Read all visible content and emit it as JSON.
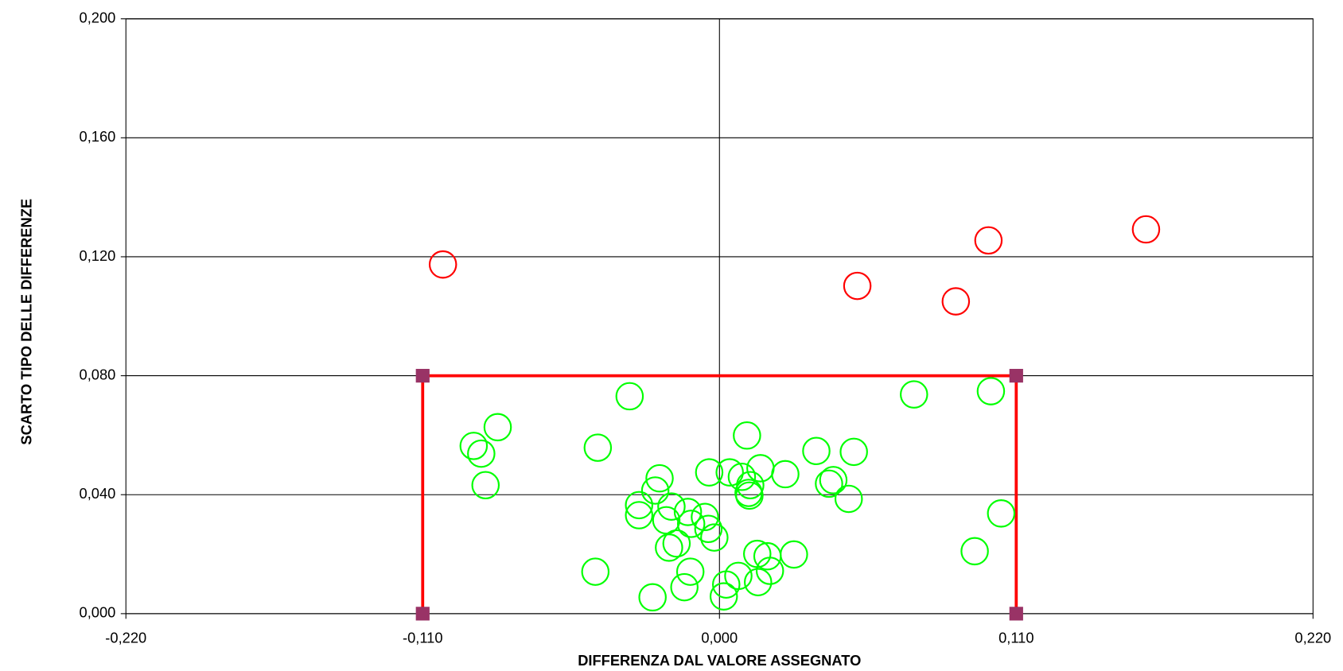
{
  "chart_data": {
    "type": "scatter",
    "x_label": "DIFFERENZA DAL VALORE ASSEGNATO",
    "y_label": "SCARTO TIPO DELLE DIFFERENZE",
    "xlim": [
      -0.22,
      0.22
    ],
    "ylim": [
      0,
      0.2
    ],
    "xticks": [
      {
        "value": -0.22,
        "label": "-0,220"
      },
      {
        "value": -0.11,
        "label": "-0,110"
      },
      {
        "value": 0,
        "label": "0,000"
      },
      {
        "value": 0.11,
        "label": "0,110"
      },
      {
        "value": 0.22,
        "label": "0,220"
      }
    ],
    "yticks": [
      {
        "value": 0,
        "label": "0,000"
      },
      {
        "value": 0.04,
        "label": "0,040"
      },
      {
        "value": 0.08,
        "label": "0,080"
      },
      {
        "value": 0.12,
        "label": "0,120"
      },
      {
        "value": 0.16,
        "label": "0,160"
      },
      {
        "value": 0.2,
        "label": "0,200"
      }
    ],
    "grid": true,
    "series": [
      {
        "color": "#ff0000",
        "marker": "square",
        "marker_color": "#993366",
        "line": true,
        "x": [
          -0.11,
          -0.11,
          0.11,
          0.11
        ],
        "values": [
          0,
          0.08,
          0.08,
          0
        ]
      },
      {
        "color": "#ff0000",
        "marker": "circle",
        "line": false,
        "x": [
          -0.1025,
          0.0511,
          0.0876,
          0.0997,
          0.1581
        ],
        "values": [
          0.1174,
          0.1102,
          0.105,
          0.1255,
          0.1292
        ]
      },
      {
        "color": "#00ff00",
        "marker": "circle",
        "line": false,
        "x": [
          -0.0333,
          -0.0911,
          -0.0883,
          -0.0822,
          -0.0867,
          -0.0451,
          -0.046,
          -0.0248,
          -0.0222,
          -0.0238,
          -0.0298,
          -0.0298,
          -0.0197,
          -0.0178,
          -0.0187,
          -0.0159,
          -0.013,
          -0.0108,
          -0.0117,
          -0.0105,
          -0.0054,
          -0.0038,
          -0.0041,
          -0.0019,
          0.0016,
          0.0025,
          0.007,
          0.0102,
          0.0038,
          0.0083,
          0.0114,
          0.0108,
          0.0111,
          0.0152,
          0.014,
          0.0143,
          0.0178,
          0.0187,
          0.0244,
          0.0276,
          0.0359,
          0.0406,
          0.0422,
          0.0479,
          0.0498,
          0.0721,
          0.1006,
          0.0946,
          0.1044
        ],
        "values": [
          0.0731,
          0.0564,
          0.0538,
          0.0627,
          0.0432,
          0.0558,
          0.0141,
          0.0055,
          0.0455,
          0.0414,
          0.0365,
          0.0331,
          0.0314,
          0.036,
          0.0222,
          0.0236,
          0.0089,
          0.0141,
          0.0342,
          0.0302,
          0.0325,
          0.0475,
          0.0285,
          0.0256,
          0.0058,
          0.0098,
          0.0127,
          0.0599,
          0.0475,
          0.046,
          0.0432,
          0.0406,
          0.0397,
          0.0489,
          0.0201,
          0.0106,
          0.0193,
          0.0144,
          0.0469,
          0.0199,
          0.0547,
          0.0437,
          0.0449,
          0.0386,
          0.0544,
          0.0737,
          0.0748,
          0.021,
          0.0337
        ]
      }
    ]
  }
}
